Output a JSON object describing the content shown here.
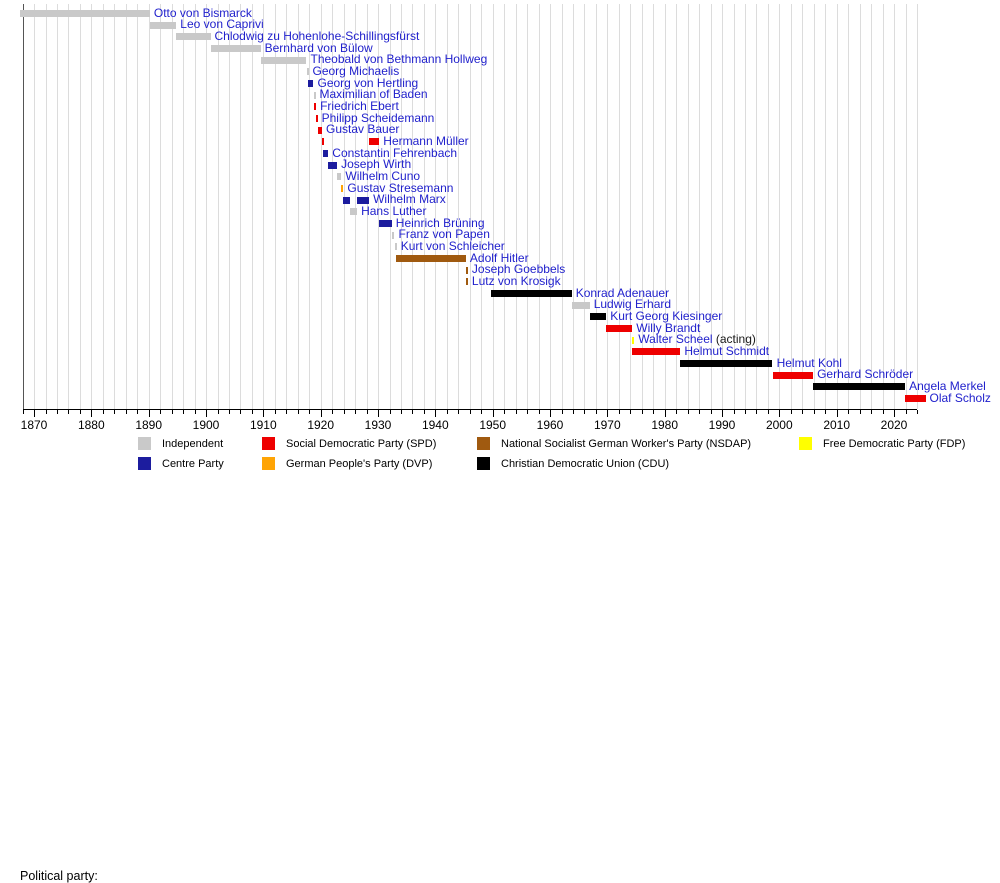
{
  "legend": {
    "title": "Political party:",
    "items": [
      {
        "party": "independent",
        "label": "Independent",
        "row": 0,
        "col": 0
      },
      {
        "party": "spd",
        "label": "Social Democratic Party (SPD)",
        "row": 0,
        "col": 1
      },
      {
        "party": "nsdap",
        "label": "National Socialist German Worker's Party (NSDAP)",
        "row": 0,
        "col": 2
      },
      {
        "party": "fdp",
        "label": "Free Democratic Party (FDP)",
        "row": 0,
        "col": 3
      },
      {
        "party": "centre",
        "label": "Centre Party",
        "row": 1,
        "col": 0
      },
      {
        "party": "dvp",
        "label": "German People's Party (DVP)",
        "row": 1,
        "col": 1
      },
      {
        "party": "cdu",
        "label": "Christian Democratic Union (CDU)",
        "row": 1,
        "col": 2
      }
    ]
  },
  "chart_data": {
    "type": "bar",
    "variant": "timeline-gantt",
    "title": "",
    "xlabel": "",
    "ylabel": "",
    "grid": "vertical, every 2 years",
    "legend_position": "bottom",
    "x_axis": {
      "range": [
        1868,
        2024
      ],
      "minor_tick_step": 2,
      "tick_labels": [
        1870,
        1880,
        1890,
        1900,
        1910,
        1920,
        1930,
        1940,
        1950,
        1960,
        1970,
        1980,
        1990,
        2000,
        2010,
        2020
      ]
    },
    "parties": {
      "independent": {
        "label": "Independent",
        "color": "#c9c9c9"
      },
      "centre": {
        "label": "Centre Party",
        "color": "#1c1c9e"
      },
      "spd": {
        "label": "Social Democratic Party (SPD)",
        "color": "#ee0000"
      },
      "dvp": {
        "label": "German People's Party (DVP)",
        "color": "#ffa405"
      },
      "nsdap": {
        "label": "National Socialist German Worker's Party (NSDAP)",
        "color": "#a05a10"
      },
      "cdu": {
        "label": "Christian Democratic Union (CDU)",
        "color": "#000000"
      },
      "fdp": {
        "label": "Free Democratic Party (FDP)",
        "color": "#ffff00"
      }
    },
    "name_link_color": "#2121cc",
    "chancellors": [
      {
        "name": "Otto von Bismarck",
        "party": "independent",
        "terms": [
          [
            1867.5,
            1890.22
          ]
        ]
      },
      {
        "name": "Leo von Caprivi",
        "party": "independent",
        "terms": [
          [
            1890.22,
            1894.82
          ]
        ]
      },
      {
        "name": "Chlodwig zu Hohenlohe-Schillingsfürst",
        "party": "independent",
        "terms": [
          [
            1894.83,
            1900.79
          ]
        ]
      },
      {
        "name": "Bernhard von Bülow",
        "party": "independent",
        "terms": [
          [
            1900.79,
            1909.53
          ]
        ]
      },
      {
        "name": "Theobald von Bethmann Hollweg",
        "party": "independent",
        "terms": [
          [
            1909.53,
            1917.53
          ]
        ]
      },
      {
        "name": "Georg Michaelis",
        "party": "independent",
        "terms": [
          [
            1917.53,
            1917.83
          ]
        ]
      },
      {
        "name": "Georg von Hertling",
        "party": "centre",
        "terms": [
          [
            1917.83,
            1918.75
          ]
        ]
      },
      {
        "name": "Maximilian of Baden",
        "party": "independent",
        "terms": [
          [
            1918.75,
            1918.86
          ]
        ]
      },
      {
        "name": "Friedrich Ebert",
        "party": "spd",
        "terms": [
          [
            1918.86,
            1919.12
          ]
        ]
      },
      {
        "name": "Philipp Scheidemann",
        "party": "spd",
        "terms": [
          [
            1919.12,
            1919.47
          ]
        ]
      },
      {
        "name": "Gustav Bauer",
        "party": "spd",
        "terms": [
          [
            1919.47,
            1920.23
          ]
        ]
      },
      {
        "name": "Hermann Müller",
        "party": "spd",
        "terms": [
          [
            1920.24,
            1920.44
          ],
          [
            1928.49,
            1930.23
          ]
        ]
      },
      {
        "name": "Constantin Fehrenbach",
        "party": "centre",
        "terms": [
          [
            1920.48,
            1921.34
          ]
        ]
      },
      {
        "name": "Joseph Wirth",
        "party": "centre",
        "terms": [
          [
            1921.35,
            1922.87
          ]
        ]
      },
      {
        "name": "Wilhelm Cuno",
        "party": "independent",
        "terms": [
          [
            1922.89,
            1923.61
          ]
        ]
      },
      {
        "name": "Gustav Stresemann",
        "party": "dvp",
        "terms": [
          [
            1923.61,
            1923.91
          ]
        ]
      },
      {
        "name": "Wilhelm Marx",
        "party": "centre",
        "terms": [
          [
            1923.91,
            1925.04
          ],
          [
            1926.37,
            1928.44
          ]
        ]
      },
      {
        "name": "Hans Luther",
        "party": "independent",
        "terms": [
          [
            1925.04,
            1926.36
          ]
        ]
      },
      {
        "name": "Heinrich Brüning",
        "party": "centre",
        "terms": [
          [
            1930.24,
            1932.41
          ]
        ]
      },
      {
        "name": "Franz von Papen",
        "party": "independent",
        "terms": [
          [
            1932.42,
            1932.88
          ]
        ]
      },
      {
        "name": "Kurt von Schleicher",
        "party": "independent",
        "terms": [
          [
            1932.92,
            1933.07
          ]
        ]
      },
      {
        "name": "Adolf Hitler",
        "party": "nsdap",
        "terms": [
          [
            1933.08,
            1945.33
          ]
        ]
      },
      {
        "name": "Joseph Goebbels",
        "party": "nsdap",
        "terms": [
          [
            1945.33,
            1945.34
          ]
        ]
      },
      {
        "name": "Lutz von Krosigk",
        "party": "nsdap",
        "terms": [
          [
            1945.34,
            1945.39
          ]
        ]
      },
      {
        "name": "Konrad Adenauer",
        "party": "cdu",
        "terms": [
          [
            1949.71,
            1963.79
          ]
        ]
      },
      {
        "name": "Ludwig Erhard",
        "party": "independent",
        "terms": [
          [
            1963.79,
            1966.92
          ]
        ]
      },
      {
        "name": "Kurt Georg Kiesinger",
        "party": "cdu",
        "terms": [
          [
            1966.92,
            1969.8
          ]
        ]
      },
      {
        "name": "Willy Brandt",
        "party": "spd",
        "terms": [
          [
            1969.8,
            1974.35
          ]
        ]
      },
      {
        "name": "Walter Scheel",
        "suffix": " (acting)",
        "party": "fdp",
        "terms": [
          [
            1974.35,
            1974.37
          ]
        ]
      },
      {
        "name": "Helmut Schmidt",
        "party": "spd",
        "terms": [
          [
            1974.37,
            1982.75
          ]
        ]
      },
      {
        "name": "Helmut Kohl",
        "party": "cdu",
        "terms": [
          [
            1982.75,
            1998.82
          ]
        ]
      },
      {
        "name": "Gerhard Schröder",
        "party": "spd",
        "terms": [
          [
            1998.82,
            2005.89
          ]
        ]
      },
      {
        "name": "Angela Merkel",
        "party": "cdu",
        "terms": [
          [
            2005.89,
            2021.93
          ]
        ]
      },
      {
        "name": "Olaf Scholz",
        "party": "spd",
        "terms": [
          [
            2021.93,
            2025.5
          ]
        ]
      }
    ]
  }
}
